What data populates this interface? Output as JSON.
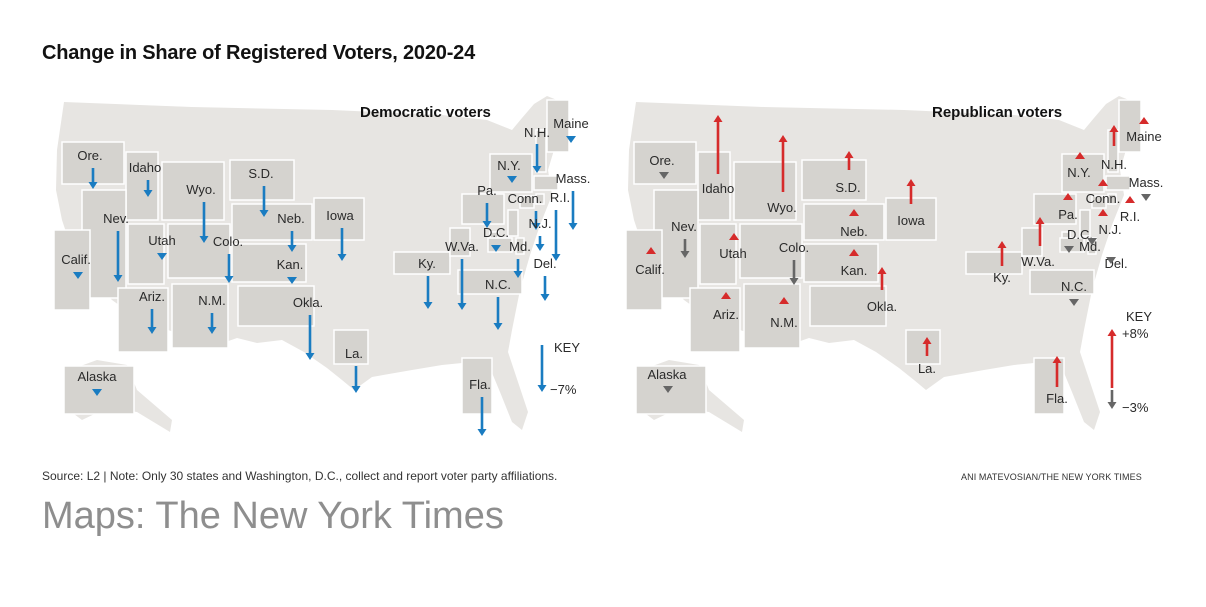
{
  "title": "Change in Share of Registered Voters, 2020-24",
  "panels": [
    {
      "id": "dem",
      "title": "Democratic voters",
      "states": [
        {
          "name": "Ore.",
          "direction": "down"
        },
        {
          "name": "Idaho",
          "direction": "down"
        },
        {
          "name": "Wyo.",
          "direction": "down"
        },
        {
          "name": "S.D.",
          "direction": "down"
        },
        {
          "name": "Neb.",
          "direction": "down"
        },
        {
          "name": "Iowa",
          "direction": "down"
        },
        {
          "name": "Nev.",
          "direction": "down"
        },
        {
          "name": "Utah",
          "direction": "down"
        },
        {
          "name": "Colo.",
          "direction": "down"
        },
        {
          "name": "Kan.",
          "direction": "down"
        },
        {
          "name": "Calif.",
          "direction": "down"
        },
        {
          "name": "Ariz.",
          "direction": "down"
        },
        {
          "name": "N.M.",
          "direction": "down"
        },
        {
          "name": "Okla.",
          "direction": "down"
        },
        {
          "name": "La.",
          "direction": "down"
        },
        {
          "name": "Ky.",
          "direction": "down"
        },
        {
          "name": "W.Va.",
          "direction": "down"
        },
        {
          "name": "N.C.",
          "direction": "down"
        },
        {
          "name": "Fla.",
          "direction": "down"
        },
        {
          "name": "Pa.",
          "direction": "down"
        },
        {
          "name": "N.Y.",
          "direction": "down"
        },
        {
          "name": "Conn.",
          "direction": "down"
        },
        {
          "name": "R.I.",
          "direction": "down"
        },
        {
          "name": "N.J.",
          "direction": "down"
        },
        {
          "name": "D.C.",
          "direction": "down"
        },
        {
          "name": "Md.",
          "direction": "down"
        },
        {
          "name": "Del.",
          "direction": "down"
        },
        {
          "name": "N.H.",
          "direction": "down"
        },
        {
          "name": "Maine",
          "direction": "down"
        },
        {
          "name": "Mass.",
          "direction": "down"
        },
        {
          "name": "Alaska",
          "direction": "down"
        }
      ],
      "key": {
        "label": "KEY",
        "value": "−7%",
        "direction": "down"
      }
    },
    {
      "id": "rep",
      "title": "Republican voters",
      "states": [
        {
          "name": "Ore.",
          "direction": "down"
        },
        {
          "name": "Idaho",
          "direction": "up"
        },
        {
          "name": "Wyo.",
          "direction": "up"
        },
        {
          "name": "S.D.",
          "direction": "up"
        },
        {
          "name": "Neb.",
          "direction": "up"
        },
        {
          "name": "Iowa",
          "direction": "up"
        },
        {
          "name": "Nev.",
          "direction": "down"
        },
        {
          "name": "Utah",
          "direction": "up"
        },
        {
          "name": "Colo.",
          "direction": "down"
        },
        {
          "name": "Kan.",
          "direction": "up"
        },
        {
          "name": "Calif.",
          "direction": "up"
        },
        {
          "name": "Ariz.",
          "direction": "up"
        },
        {
          "name": "N.M.",
          "direction": "up"
        },
        {
          "name": "Okla.",
          "direction": "up"
        },
        {
          "name": "La.",
          "direction": "up"
        },
        {
          "name": "Ky.",
          "direction": "up"
        },
        {
          "name": "W.Va.",
          "direction": "up"
        },
        {
          "name": "N.C.",
          "direction": "down"
        },
        {
          "name": "Fla.",
          "direction": "up"
        },
        {
          "name": "Pa.",
          "direction": "up"
        },
        {
          "name": "N.Y.",
          "direction": "up"
        },
        {
          "name": "Conn.",
          "direction": "up"
        },
        {
          "name": "R.I.",
          "direction": "up"
        },
        {
          "name": "N.J.",
          "direction": "up"
        },
        {
          "name": "D.C.",
          "direction": "down"
        },
        {
          "name": "Md.",
          "direction": "down"
        },
        {
          "name": "Del.",
          "direction": "down"
        },
        {
          "name": "N.H.",
          "direction": "up"
        },
        {
          "name": "Maine",
          "direction": "up"
        },
        {
          "name": "Mass.",
          "direction": "down"
        },
        {
          "name": "Alaska",
          "direction": "down"
        }
      ],
      "key": {
        "label": "KEY",
        "value_up": "+8%",
        "value_down": "−3%"
      }
    }
  ],
  "source": "Source: L2 | Note: Only 30 states and Washington, D.C., collect and report voter party affiliations.",
  "credit": "ANI MATEVOSIAN/THE NEW YORK TIMES",
  "caption": "Maps: The New York Times",
  "colors": {
    "dem": "#1a7cc1",
    "rep_up": "#d62b2b",
    "rep_down": "#666666",
    "land": "#e7e5e2",
    "state": "#d5d3cf"
  }
}
